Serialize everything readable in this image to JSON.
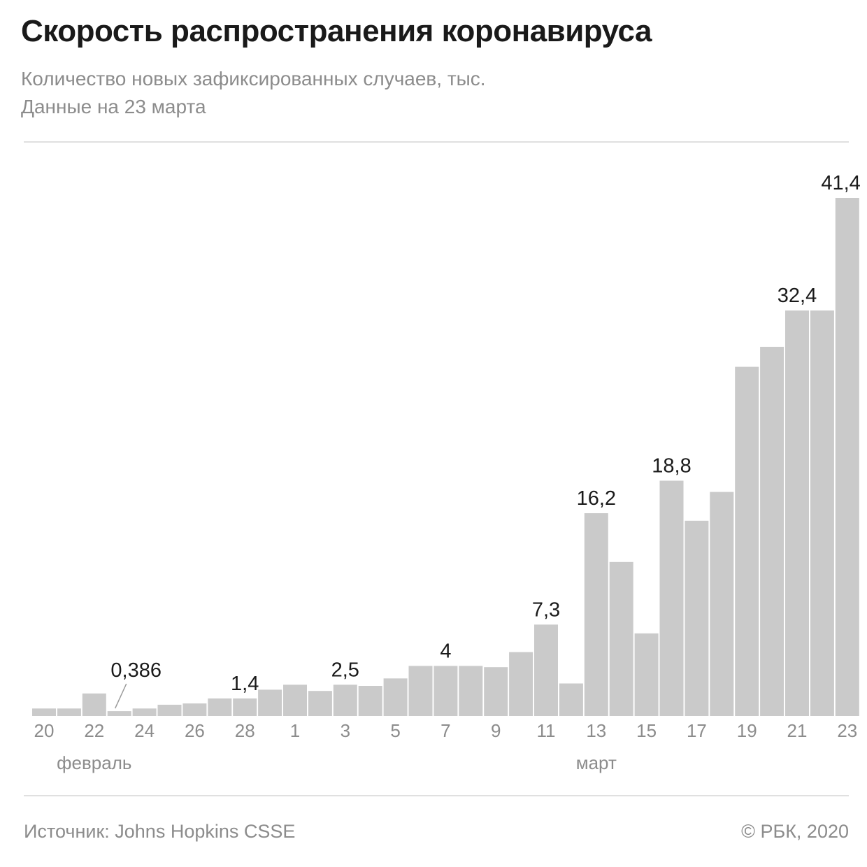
{
  "header": {
    "title": "Скорость распространения коронавируса",
    "subtitle_1": "Количество новых зафиксированных случаев, тыс.",
    "subtitle_2": "Данные на 23 марта"
  },
  "footer": {
    "source": "Источник: Johns Hopkins CSSE",
    "credit": "© РБК, 2020"
  },
  "colors": {
    "bar": "#cacaca",
    "label": "#1a1a1a",
    "tick": "#8c8c8c"
  },
  "chart_data": {
    "type": "bar",
    "title": "Скорость распространения коронавируса",
    "subtitle": "Количество новых зафиксированных случаев, тыс.",
    "xlabel": "",
    "ylabel": "",
    "ylim": [
      0,
      41.4
    ],
    "grid": false,
    "legend": "none",
    "categories": [
      "20",
      "21",
      "22",
      "23",
      "24",
      "25",
      "26",
      "27",
      "28",
      "29",
      "1",
      "2",
      "3",
      "4",
      "5",
      "6",
      "7",
      "8",
      "9",
      "10",
      "11",
      "12",
      "13",
      "14",
      "15",
      "16",
      "17",
      "18",
      "19",
      "20",
      "21",
      "22",
      "23"
    ],
    "dates": [
      "2020-02-20",
      "2020-02-21",
      "2020-02-22",
      "2020-02-23",
      "2020-02-24",
      "2020-02-25",
      "2020-02-26",
      "2020-02-27",
      "2020-02-28",
      "2020-02-29",
      "2020-03-01",
      "2020-03-02",
      "2020-03-03",
      "2020-03-04",
      "2020-03-05",
      "2020-03-06",
      "2020-03-07",
      "2020-03-08",
      "2020-03-09",
      "2020-03-10",
      "2020-03-11",
      "2020-03-12",
      "2020-03-13",
      "2020-03-14",
      "2020-03-15",
      "2020-03-16",
      "2020-03-17",
      "2020-03-18",
      "2020-03-19",
      "2020-03-20",
      "2020-03-21",
      "2020-03-22",
      "2020-03-23"
    ],
    "values": [
      0.6,
      0.6,
      1.8,
      0.386,
      0.6,
      0.9,
      1.0,
      1.4,
      1.4,
      2.1,
      2.5,
      2.0,
      2.5,
      2.4,
      3.0,
      4.0,
      4.0,
      4.0,
      3.9,
      5.1,
      7.3,
      2.6,
      16.2,
      12.3,
      6.6,
      18.8,
      15.6,
      17.9,
      27.9,
      29.5,
      32.4,
      32.4,
      41.4
    ],
    "x_tick_labels": [
      {
        "date": "2020-02-20",
        "label": "20"
      },
      {
        "date": "2020-02-22",
        "label": "22"
      },
      {
        "date": "2020-02-24",
        "label": "24"
      },
      {
        "date": "2020-02-26",
        "label": "26"
      },
      {
        "date": "2020-02-28",
        "label": "28"
      },
      {
        "date": "2020-03-01",
        "label": "1"
      },
      {
        "date": "2020-03-03",
        "label": "3"
      },
      {
        "date": "2020-03-05",
        "label": "5"
      },
      {
        "date": "2020-03-07",
        "label": "7"
      },
      {
        "date": "2020-03-09",
        "label": "9"
      },
      {
        "date": "2020-03-11",
        "label": "11"
      },
      {
        "date": "2020-03-13",
        "label": "13"
      },
      {
        "date": "2020-03-15",
        "label": "15"
      },
      {
        "date": "2020-03-17",
        "label": "17"
      },
      {
        "date": "2020-03-19",
        "label": "19"
      },
      {
        "date": "2020-03-21",
        "label": "21"
      },
      {
        "date": "2020-03-23",
        "label": "23"
      }
    ],
    "month_labels": [
      {
        "date": "2020-02-22",
        "label": "февраль"
      },
      {
        "date": "2020-03-13",
        "label": "март"
      }
    ],
    "annotations": [
      {
        "date": "2020-02-23",
        "label": "0,386",
        "leader": true
      },
      {
        "date": "2020-02-28",
        "label": "1,4"
      },
      {
        "date": "2020-03-03",
        "label": "2,5"
      },
      {
        "date": "2020-03-07",
        "label": "4"
      },
      {
        "date": "2020-03-11",
        "label": "7,3"
      },
      {
        "date": "2020-03-13",
        "label": "16,2"
      },
      {
        "date": "2020-03-16",
        "label": "18,8"
      },
      {
        "date": "2020-03-21",
        "label": "32,4"
      },
      {
        "date": "2020-03-23",
        "label": "41,4"
      }
    ]
  }
}
